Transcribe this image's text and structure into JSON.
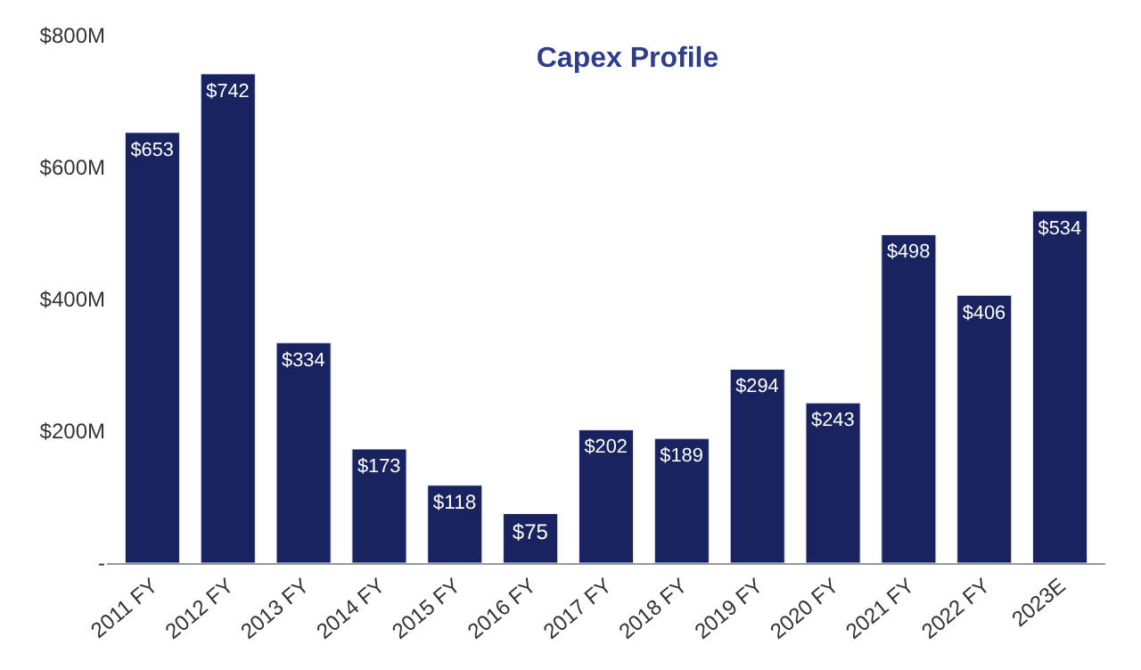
{
  "chart_data": {
    "type": "bar",
    "title": "Capex Profile",
    "categories": [
      "2011 FY",
      "2012 FY",
      "2013 FY",
      "2014 FY",
      "2015 FY",
      "2016 FY",
      "2017 FY",
      "2018 FY",
      "2019 FY",
      "2020 FY",
      "2021 FY",
      "2022 FY",
      "2023E"
    ],
    "values": [
      653,
      742,
      334,
      173,
      118,
      75,
      202,
      189,
      294,
      243,
      498,
      406,
      534
    ],
    "value_labels": [
      "$653",
      "$742",
      "$334",
      "$173",
      "$118",
      "$75",
      "$202",
      "$189",
      "$294",
      "$243",
      "$498",
      "$406",
      "$534"
    ],
    "color": "#18235f",
    "ylim": [
      0,
      800
    ],
    "yticks": [
      {
        "value": 0,
        "label": "-"
      },
      {
        "value": 200,
        "label": "$200M"
      },
      {
        "value": 400,
        "label": "$400M"
      },
      {
        "value": 600,
        "label": "$600M"
      },
      {
        "value": 800,
        "label": "$800M"
      }
    ]
  }
}
